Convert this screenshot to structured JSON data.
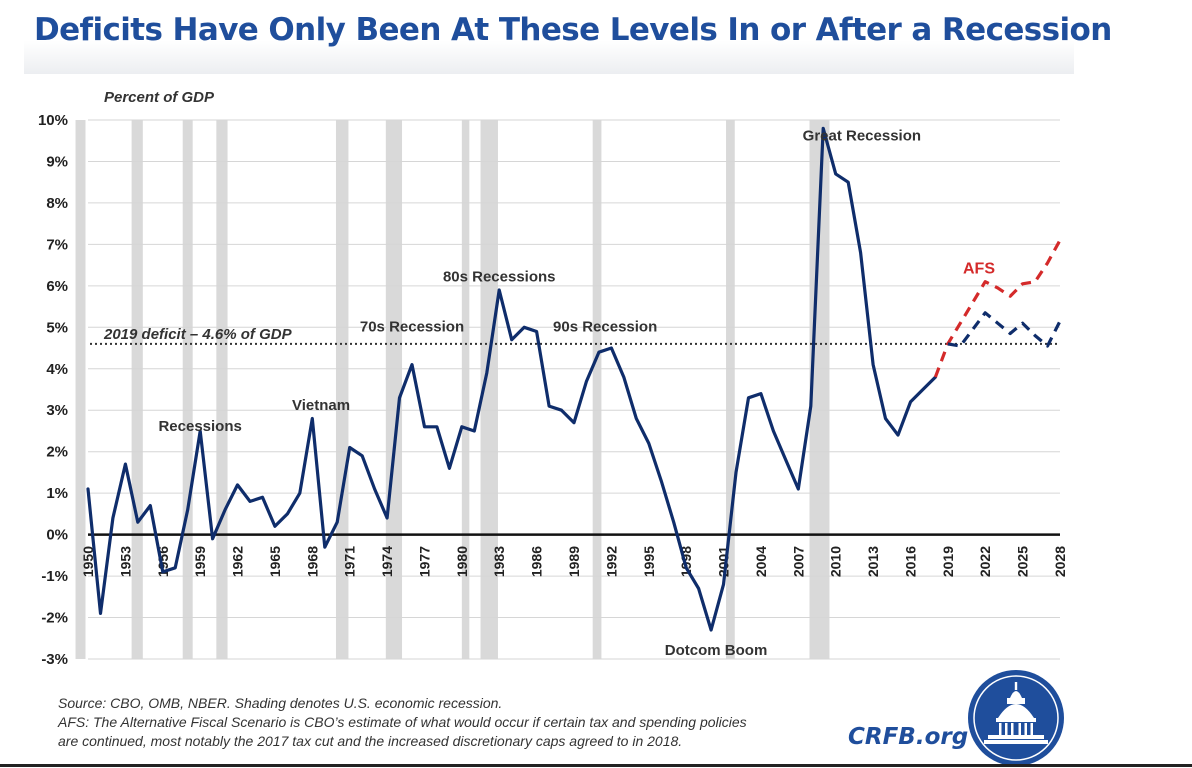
{
  "title": "Deficits Have Only Been At These Levels In or After a Recession",
  "footer": {
    "line1": "Source: CBO, OMB, NBER. Shading denotes U.S. economic recession.",
    "line2": "AFS: The Alternative Fiscal Scenario is CBO’s estimate of what would occur if certain tax and spending policies",
    "line3": "are continued, most notably the 2017 tax cut and the increased discretionary caps agreed to in 2018.",
    "site": "CRFB.org"
  },
  "logo_icon": "capitol-dome-icon",
  "chart_data": {
    "type": "line",
    "ylabel": "Percent of GDP",
    "ylim": [
      -3,
      10
    ],
    "yticks": [
      -3,
      -2,
      -1,
      0,
      1,
      2,
      3,
      4,
      5,
      6,
      7,
      8,
      9,
      10
    ],
    "ytick_labels": [
      "-3%",
      "-2%",
      "-1%",
      "0%",
      "1%",
      "2%",
      "3%",
      "4%",
      "5%",
      "6%",
      "7%",
      "8%",
      "9%",
      "10%"
    ],
    "xlim": [
      1950,
      2028
    ],
    "xticks": [
      1950,
      1953,
      1956,
      1959,
      1962,
      1965,
      1968,
      1971,
      1974,
      1977,
      1980,
      1983,
      1986,
      1989,
      1992,
      1995,
      1998,
      2001,
      2004,
      2007,
      2010,
      2013,
      2016,
      2019,
      2022,
      2025,
      2028
    ],
    "xtick_labels": [
      "1950",
      "1953",
      "1956",
      "1959",
      "1962",
      "1965",
      "1968",
      "1971",
      "1974",
      "1977",
      "1980",
      "1983",
      "1986",
      "1989",
      "1992",
      "1995",
      "1998",
      "2001",
      "2004",
      "2007",
      "2010",
      "2013",
      "2016",
      "2019",
      "2022",
      "2025",
      "2028"
    ],
    "grid": true,
    "recessions": [
      [
        1949.0,
        1949.8
      ],
      [
        1953.5,
        1954.4
      ],
      [
        1957.6,
        1958.4
      ],
      [
        1960.3,
        1961.2
      ],
      [
        1969.9,
        1970.9
      ],
      [
        1973.9,
        1975.2
      ],
      [
        1980.0,
        1980.6
      ],
      [
        1981.5,
        1982.9
      ],
      [
        1990.5,
        1991.2
      ],
      [
        2001.2,
        2001.9
      ],
      [
        2007.9,
        2009.5
      ]
    ],
    "reference_line": {
      "value": 4.6,
      "label": "2019 deficit – 4.6% of GDP"
    },
    "series": [
      {
        "name": "",
        "color": "#0f2d6b",
        "style": "solid",
        "x": [
          1950,
          1951,
          1952,
          1953,
          1954,
          1955,
          1956,
          1957,
          1958,
          1959,
          1960,
          1961,
          1962,
          1963,
          1964,
          1965,
          1966,
          1967,
          1968,
          1969,
          1970,
          1971,
          1972,
          1973,
          1974,
          1975,
          1976,
          1977,
          1978,
          1979,
          1980,
          1981,
          1982,
          1983,
          1984,
          1985,
          1986,
          1987,
          1988,
          1989,
          1990,
          1991,
          1992,
          1993,
          1994,
          1995,
          1996,
          1997,
          1998,
          1999,
          2000,
          2001,
          2002,
          2003,
          2004,
          2005,
          2006,
          2007,
          2008,
          2009,
          2010,
          2011,
          2012,
          2013,
          2014,
          2015,
          2016,
          2017,
          2018
        ],
        "y": [
          1.1,
          -1.9,
          0.4,
          1.7,
          0.3,
          0.7,
          -0.9,
          -0.8,
          0.6,
          2.5,
          -0.1,
          0.6,
          1.2,
          0.8,
          0.9,
          0.2,
          0.5,
          1.0,
          2.8,
          -0.3,
          0.3,
          2.1,
          1.9,
          1.1,
          0.4,
          3.3,
          4.1,
          2.6,
          2.6,
          1.6,
          2.6,
          2.5,
          3.9,
          5.9,
          4.7,
          5.0,
          4.9,
          3.1,
          3.0,
          2.7,
          3.7,
          4.4,
          4.5,
          3.8,
          2.8,
          2.2,
          1.3,
          0.3,
          -0.8,
          -1.3,
          -2.3,
          -1.2,
          1.5,
          3.3,
          3.4,
          2.5,
          1.8,
          1.1,
          3.1,
          9.8,
          8.7,
          8.5,
          6.8,
          4.1,
          2.8,
          2.4,
          3.2,
          3.5,
          3.8
        ]
      },
      {
        "name": "AFS",
        "color": "#d42a2a",
        "style": "dashed",
        "x": [
          2018,
          2019,
          2020,
          2021,
          2022,
          2023,
          2024,
          2025,
          2026,
          2027,
          2028
        ],
        "y": [
          3.8,
          4.6,
          5.1,
          5.6,
          6.1,
          5.95,
          5.75,
          6.05,
          6.1,
          6.55,
          7.1
        ]
      },
      {
        "name": "",
        "color": "#0f2d6b",
        "style": "dashed",
        "x": [
          2019,
          2020,
          2021,
          2022,
          2023,
          2024,
          2025,
          2026,
          2027,
          2028
        ],
        "y": [
          4.6,
          4.55,
          4.95,
          5.35,
          5.1,
          4.85,
          5.1,
          4.8,
          4.55,
          5.15
        ]
      }
    ],
    "annotations": [
      {
        "text": "Recessions",
        "x": 1959.0,
        "y": 2.5
      },
      {
        "text": "Vietnam",
        "x": 1968.7,
        "y": 3.0
      },
      {
        "text": "70s Recession",
        "x": 1976.0,
        "y": 4.9
      },
      {
        "text": "80s Recessions",
        "x": 1983.0,
        "y": 6.1
      },
      {
        "text": "90s Recession",
        "x": 1991.5,
        "y": 4.9
      },
      {
        "text": "Dotcom Boom",
        "x": 2000.4,
        "y": -2.9
      },
      {
        "text": "Great Recession",
        "x": 2012.1,
        "y": 9.5
      }
    ]
  }
}
